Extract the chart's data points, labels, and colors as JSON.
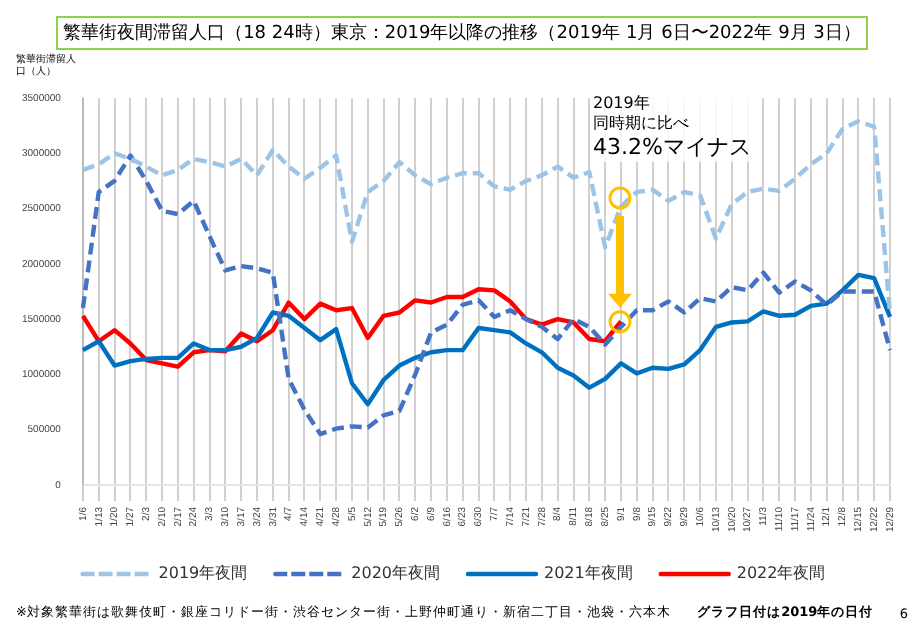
{
  "chart_data": {
    "type": "line",
    "title": "繁華街夜間滞留人口（18 24時）東京：2019年以降の推移（2019年 1月 6日〜2022年 9月 3日）",
    "ylabel": "繁華街滞留人口（人）",
    "categories": [
      "1/6",
      "1/13",
      "1/20",
      "1/27",
      "2/3",
      "2/10",
      "2/17",
      "2/24",
      "3/3",
      "3/10",
      "3/17",
      "3/24",
      "3/31",
      "4/7",
      "4/14",
      "4/21",
      "4/28",
      "5/5",
      "5/12",
      "5/19",
      "5/26",
      "6/2",
      "6/9",
      "6/16",
      "6/23",
      "6/30",
      "7/7",
      "7/14",
      "7/21",
      "7/28",
      "8/4",
      "8/11",
      "8/18",
      "8/25",
      "9/1",
      "9/8",
      "9/15",
      "9/22",
      "9/29",
      "10/6",
      "10/13",
      "10/20",
      "10/27",
      "11/3",
      "11/10",
      "11/17",
      "11/24",
      "12/1",
      "12/8",
      "12/15",
      "12/22",
      "12/29"
    ],
    "series": [
      {
        "name": "2019年夜間",
        "color": "#9dc3e6",
        "line_style": "dashed",
        "values": [
          2850000,
          2900000,
          3000000,
          2950000,
          2880000,
          2800000,
          2850000,
          2950000,
          2920000,
          2880000,
          2950000,
          2800000,
          3030000,
          2880000,
          2770000,
          2870000,
          2980000,
          2200000,
          2650000,
          2750000,
          2920000,
          2800000,
          2720000,
          2780000,
          2820000,
          2820000,
          2700000,
          2670000,
          2750000,
          2800000,
          2880000,
          2780000,
          2830000,
          2150000,
          2520000,
          2650000,
          2670000,
          2570000,
          2650000,
          2620000,
          2230000,
          2540000,
          2650000,
          2680000,
          2660000,
          2770000,
          2900000,
          3000000,
          3220000,
          3290000,
          3240000,
          1550000
        ]
      },
      {
        "name": "2020年夜間",
        "color": "#4472c4",
        "line_style": "dashed",
        "values": [
          1600000,
          2650000,
          2750000,
          2980000,
          2750000,
          2480000,
          2450000,
          2570000,
          2250000,
          1940000,
          1980000,
          1960000,
          1920000,
          960000,
          680000,
          460000,
          510000,
          530000,
          520000,
          630000,
          670000,
          1000000,
          1380000,
          1450000,
          1630000,
          1670000,
          1520000,
          1580000,
          1500000,
          1430000,
          1320000,
          1500000,
          1430000,
          1270000,
          1430000,
          1580000,
          1580000,
          1660000,
          1560000,
          1690000,
          1660000,
          1790000,
          1760000,
          1920000,
          1740000,
          1840000,
          1760000,
          1630000,
          1750000,
          1750000,
          1750000,
          1220000
        ]
      },
      {
        "name": "2021年夜間",
        "color": "#0070c0",
        "line_style": "solid",
        "values": [
          1220000,
          1300000,
          1080000,
          1120000,
          1140000,
          1150000,
          1150000,
          1280000,
          1220000,
          1220000,
          1250000,
          1330000,
          1560000,
          1530000,
          1420000,
          1310000,
          1410000,
          920000,
          730000,
          950000,
          1080000,
          1150000,
          1200000,
          1220000,
          1220000,
          1420000,
          1400000,
          1380000,
          1280000,
          1200000,
          1060000,
          990000,
          880000,
          960000,
          1100000,
          1010000,
          1060000,
          1050000,
          1090000,
          1220000,
          1430000,
          1470000,
          1480000,
          1570000,
          1530000,
          1540000,
          1620000,
          1640000,
          1760000,
          1900000,
          1870000,
          1520000
        ]
      },
      {
        "name": "2022年夜間",
        "color": "#ff0000",
        "line_style": "solid",
        "values": [
          1530000,
          1300000,
          1400000,
          1280000,
          1130000,
          1100000,
          1070000,
          1200000,
          1220000,
          1210000,
          1370000,
          1300000,
          1400000,
          1650000,
          1500000,
          1640000,
          1580000,
          1600000,
          1330000,
          1530000,
          1560000,
          1670000,
          1650000,
          1700000,
          1700000,
          1770000,
          1760000,
          1660000,
          1500000,
          1450000,
          1500000,
          1470000,
          1320000,
          1300000,
          1480000,
          null,
          null,
          null,
          null,
          null,
          null,
          null,
          null,
          null,
          null,
          null,
          null,
          null,
          null,
          null,
          null,
          null
        ]
      }
    ],
    "ylim": [
      0,
      3500000
    ],
    "yticks": [
      0,
      500000,
      1000000,
      1500000,
      2000000,
      2500000,
      3000000,
      3500000
    ],
    "grid": "x",
    "legend": "bottom",
    "marker": "none",
    "annotations": [
      "2019年",
      "同時期に比べ",
      {
        "text": "43.2%マイナス",
        "x": "9/1",
        "y": 2600000
      },
      "グラフ日付は2019年の日付",
      "※対象繁華街は歌舞伎町・銀座コリドー街・渋谷センター街・上野仲町通り・新宿二丁目・池袋・六本木",
      "6"
    ]
  }
}
